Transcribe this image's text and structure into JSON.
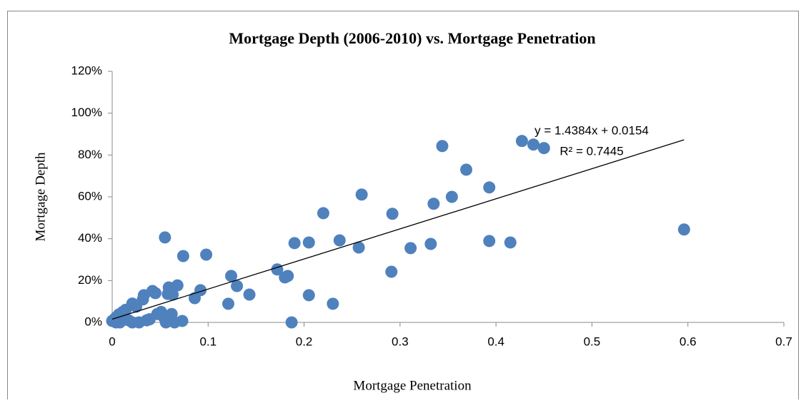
{
  "chart_data": {
    "type": "scatter",
    "title": "Mortgage Depth (2006-2010)  vs. Mortgage Penetration",
    "x_label": "Mortgage Penetration",
    "y_label": "Mortgage Depth",
    "color": "#4f81bd",
    "x": [
      0,
      0.002,
      0.004,
      0.007,
      0.01,
      0.011,
      0.014,
      0.004,
      0.008,
      0.017,
      0.021,
      0.021,
      0.025,
      0.028,
      0.032,
      0.033,
      0.036,
      0.039,
      0.042,
      0.045,
      0.047,
      0.051,
      0.054,
      0.055,
      0.056,
      0.058,
      0.059,
      0.062,
      0.063,
      0.065,
      0.068,
      0.073,
      0.074,
      0.086,
      0.092,
      0.098,
      0.121,
      0.124,
      0.13,
      0.143,
      0.172,
      0.18,
      0.183,
      0.187,
      0.19,
      0.205,
      0.205,
      0.22,
      0.23,
      0.237,
      0.257,
      0.26,
      0.291,
      0.292,
      0.311,
      0.332,
      0.335,
      0.344,
      0.354,
      0.369,
      0.393,
      0.393,
      0.415,
      0.427,
      0.439,
      0.45,
      0.596
    ],
    "values": [
      0.7,
      1.4,
      2.4,
      3.8,
      4,
      5,
      6,
      0,
      0,
      1,
      9,
      0,
      7.5,
      0,
      11,
      13,
      1,
      1.5,
      15,
      14,
      4,
      5,
      2.4,
      40.6,
      0,
      13.6,
      16.7,
      4,
      13.3,
      0,
      17.7,
      0.7,
      31.7,
      11.6,
      15.4,
      32.4,
      8.9,
      22.2,
      17.4,
      13.3,
      25.3,
      21.5,
      22.2,
      0,
      37.9,
      13,
      38.2,
      52.2,
      8.9,
      39.2,
      35.8,
      61.1,
      24.2,
      51.9,
      35.5,
      37.5,
      56.7,
      84.3,
      60,
      73,
      64.5,
      38.9,
      38.2,
      86.7,
      85,
      83.3,
      44.4
    ],
    "trendline": {
      "x": [
        0,
        0.596
      ],
      "values": [
        1.54,
        87.27
      ],
      "color": "#000000"
    },
    "annotations": [
      "y = 1.4384x + 0.0154",
      "R² = 0.7445"
    ],
    "xlim": [
      0,
      0.7
    ],
    "xticks": [
      0,
      0.1,
      0.2,
      0.3,
      0.4,
      0.5,
      0.6,
      0.7
    ],
    "ylim": [
      0,
      120
    ],
    "yticks": [
      {
        "value": 0,
        "label": "0%"
      },
      {
        "value": 20,
        "label": "20%"
      },
      {
        "value": 40,
        "label": "40%"
      },
      {
        "value": 60,
        "label": "60%"
      },
      {
        "value": 80,
        "label": "80%"
      },
      {
        "value": 100,
        "label": "100%"
      },
      {
        "value": 120,
        "label": "120%"
      }
    ],
    "grid": false
  }
}
